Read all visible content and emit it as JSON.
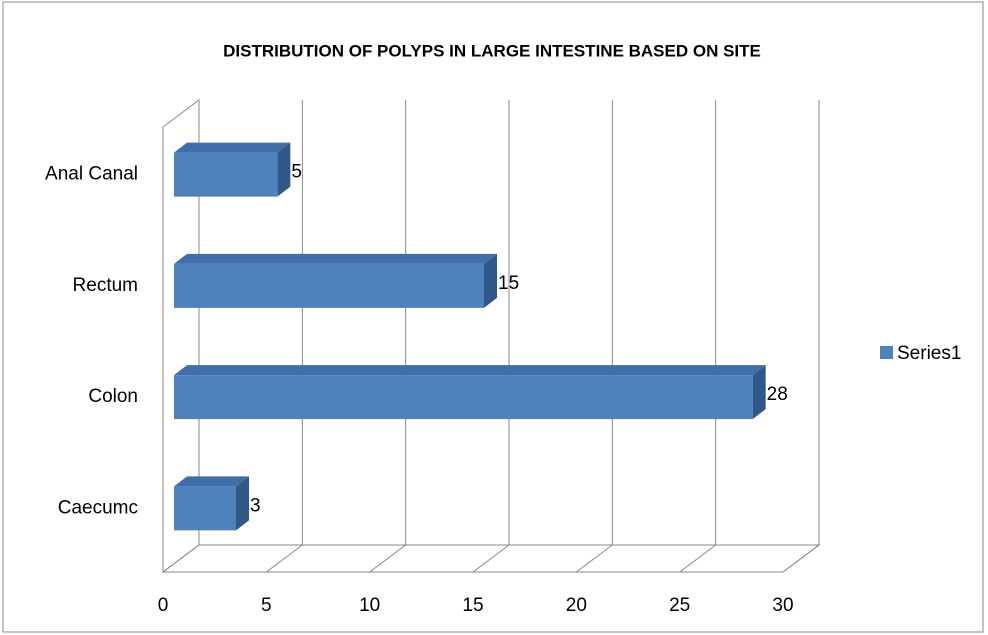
{
  "chart_data": {
    "type": "bar3d",
    "title": "DISTRIBUTION OF POLYPS IN LARGE INTESTINE BASED ON SITE",
    "categories": [
      "Caecumc",
      "Colon",
      "Rectum",
      "Anal Canal"
    ],
    "series": [
      {
        "name": "Series1",
        "color": "#4f81bd",
        "values": [
          3,
          28,
          15,
          5
        ]
      }
    ],
    "xlim": [
      0,
      30
    ],
    "xticks": [
      0,
      5,
      10,
      15,
      20,
      25,
      30
    ],
    "grid": true,
    "legend": "right"
  }
}
